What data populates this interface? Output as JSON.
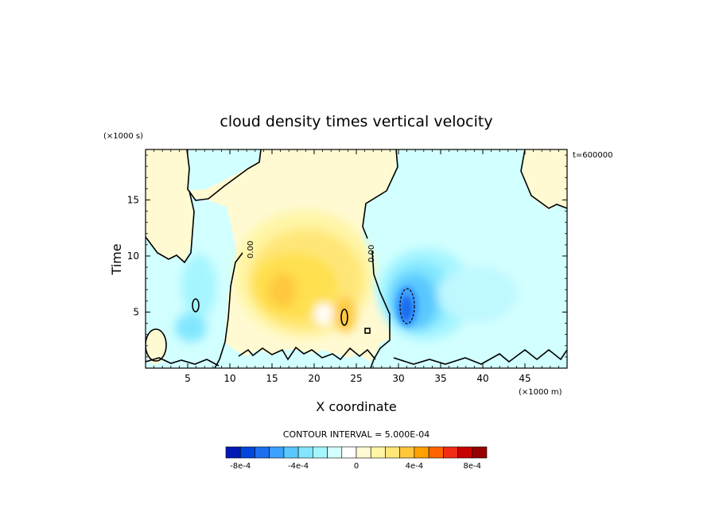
{
  "chart_data": {
    "type": "heatmap",
    "title": "cloud density times vertical velocity",
    "xlabel": "X coordinate",
    "ylabel": "Time",
    "x_units": "(×1000 m)",
    "y_units": "(×1000 s)",
    "time_label": "t=600000",
    "xlim": [
      0,
      50
    ],
    "ylim": [
      0,
      19.5
    ],
    "x_ticks": [
      "5",
      "10",
      "15",
      "20",
      "25",
      "30",
      "35",
      "40",
      "45"
    ],
    "y_ticks": [
      "5",
      "10",
      "15"
    ],
    "contour_labels": [
      "0.00",
      "0.00"
    ],
    "contour_interval_text": "CONTOUR INTERVAL = 5.000E-04",
    "colorbar_ticks": [
      "-8e-4",
      "-4e-4",
      "0",
      "4e-4",
      "8e-4"
    ],
    "colorbar_colors": [
      "#0019b4",
      "#0046de",
      "#1e6ef0",
      "#3ca0ff",
      "#5ac8ff",
      "#82e6ff",
      "#a5f5ff",
      "#d2ffff",
      "#ffffff",
      "#fffad2",
      "#fff5a5",
      "#ffe678",
      "#ffc83c",
      "#ffa000",
      "#ff6400",
      "#f02d14",
      "#c80000",
      "#960000"
    ],
    "features": [
      {
        "name": "positive core",
        "x": 23.5,
        "y": 4.5,
        "value": 0.00045
      },
      {
        "name": "positive region",
        "x": 18,
        "y": 7.5,
        "value": 0.00025
      },
      {
        "name": "negative core",
        "x": 30.8,
        "y": 5.2,
        "value": -0.00075
      },
      {
        "name": "negative region",
        "x": 33,
        "y": 7,
        "value": -0.0003
      }
    ]
  }
}
